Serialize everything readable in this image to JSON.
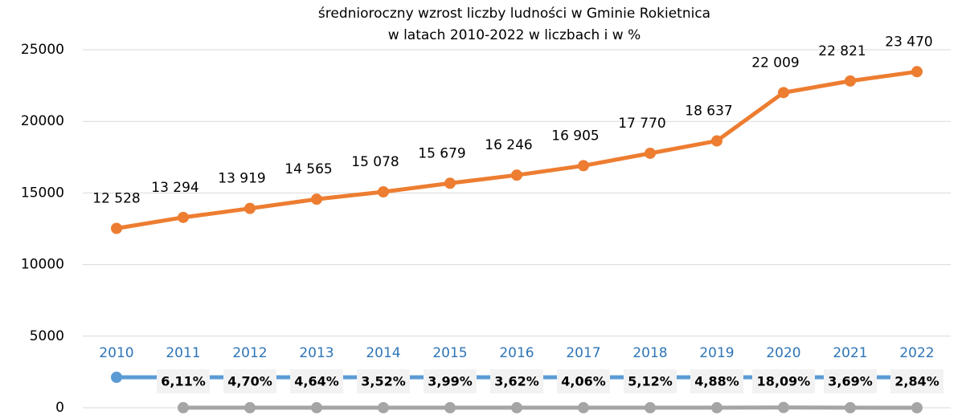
{
  "chart_data": {
    "type": "line",
    "title": "średnioroczny wzrost liczby ludności w Gminie Rokietnica",
    "subtitle": "w latach 2010-2022 w liczbach i w %",
    "categories": [
      "2010",
      "2011",
      "2012",
      "2013",
      "2014",
      "2015",
      "2016",
      "2017",
      "2018",
      "2019",
      "2020",
      "2021",
      "2022"
    ],
    "series": [
      {
        "color": "#ed7d31",
        "values": [
          12528,
          13294,
          13919,
          14565,
          15078,
          15679,
          16246,
          16905,
          17770,
          18637,
          22009,
          22821,
          23470
        ],
        "value_labels": [
          "12 528",
          "13 294",
          "13 919",
          "14 565",
          "15 078",
          "15 679",
          "16 246",
          "16 905",
          "17 770",
          "18 637",
          "22 009",
          "22 821",
          "23 470"
        ]
      },
      {
        "color": "#5b9bd5",
        "values": [
          2130,
          2130,
          2130,
          2130,
          2130,
          2130,
          2130,
          2130,
          2130,
          2130,
          2130,
          2130,
          2130
        ]
      },
      {
        "color": "#a5a5a5",
        "values": [
          null,
          6.11,
          4.7,
          4.64,
          3.52,
          3.99,
          3.62,
          4.06,
          5.12,
          4.88,
          18.09,
          3.69,
          2.84
        ],
        "value_labels": [
          null,
          "6,11%",
          "4,70%",
          "4,64%",
          "3,52%",
          "3,99%",
          "3,62%",
          "4,06%",
          "5,12%",
          "4,88%",
          "18,09%",
          "3,69%",
          "2,84%"
        ]
      }
    ],
    "ylim": [
      0,
      25000
    ],
    "yticks": [
      0,
      5000,
      10000,
      15000,
      20000,
      25000
    ],
    "grid": true
  }
}
